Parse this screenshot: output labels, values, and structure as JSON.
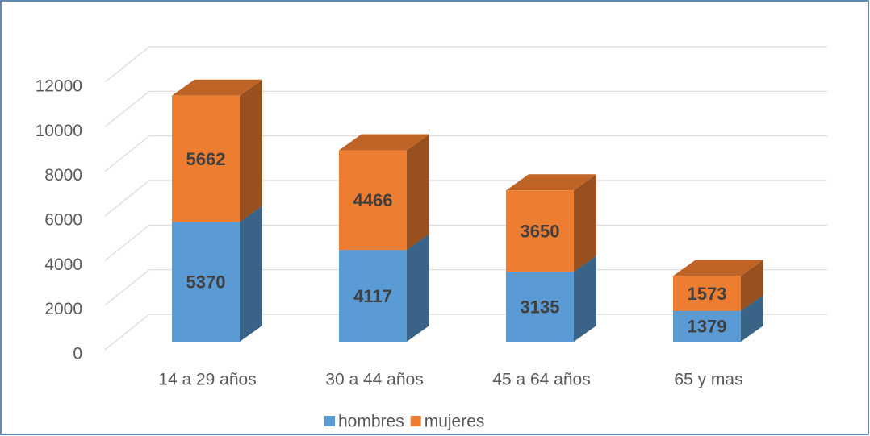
{
  "chart_data": {
    "type": "bar3d_stacked",
    "categories": [
      "14 a 29 años",
      "30 a 44 años",
      "45 a 64 años",
      "65 y mas"
    ],
    "series": [
      {
        "name": "hombres",
        "color": "#5b9bd5",
        "values": [
          5370,
          4117,
          3135,
          1379
        ]
      },
      {
        "name": "mujeres",
        "color": "#ed7d31",
        "values": [
          5662,
          4466,
          3650,
          1573
        ]
      }
    ],
    "ylim": [
      0,
      12000
    ],
    "yticks": [
      0,
      2000,
      4000,
      6000,
      8000,
      10000,
      12000
    ],
    "grid": true,
    "legend": "bottom"
  }
}
